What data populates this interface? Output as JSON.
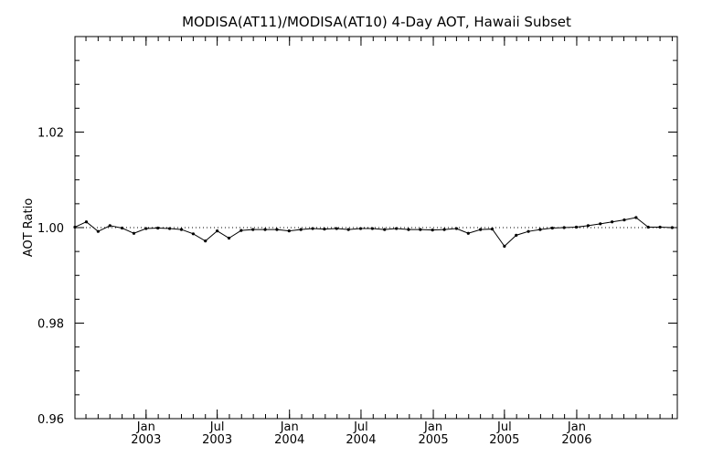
{
  "chart_data": {
    "type": "line",
    "title": "MODISA(AT11)/MODISA(AT10) 4-Day AOT, Hawaii Subset",
    "xlabel": "",
    "ylabel": "AOT Ratio",
    "ylim": [
      0.96,
      1.04
    ],
    "xlim": [
      "2002-07-04",
      "2006-09-14"
    ],
    "y_ticks": [
      {
        "value": 0.96,
        "label": "0.96"
      },
      {
        "value": 0.98,
        "label": "0.98"
      },
      {
        "value": 1.0,
        "label": "1.00"
      },
      {
        "value": 1.02,
        "label": "1.02"
      }
    ],
    "x_ticks": [
      {
        "date": "2003-01-01",
        "month": "Jan",
        "year": "2003"
      },
      {
        "date": "2003-07-01",
        "month": "Jul",
        "year": "2003"
      },
      {
        "date": "2004-01-01",
        "month": "Jan",
        "year": "2004"
      },
      {
        "date": "2004-07-01",
        "month": "Jul",
        "year": "2004"
      },
      {
        "date": "2005-01-01",
        "month": "Jan",
        "year": "2005"
      },
      {
        "date": "2005-07-01",
        "month": "Jul",
        "year": "2005"
      },
      {
        "date": "2006-01-01",
        "month": "Jan",
        "year": "2006"
      }
    ],
    "reference_line": {
      "y": 1.0,
      "style": "dotted"
    },
    "grid": false,
    "series": [
      {
        "x": [
          "2002-07-04",
          "2002-08-02",
          "2002-09-01",
          "2002-10-01",
          "2002-11-01",
          "2002-12-01",
          "2003-01-01",
          "2003-01-31",
          "2003-03-02",
          "2003-04-01",
          "2003-05-01",
          "2003-06-01",
          "2003-07-01",
          "2003-07-31",
          "2003-08-31",
          "2003-09-30",
          "2003-10-31",
          "2003-11-30",
          "2003-12-31",
          "2004-01-30",
          "2004-02-29",
          "2004-03-30",
          "2004-04-30",
          "2004-05-30",
          "2004-06-30",
          "2004-07-30",
          "2004-08-30",
          "2004-09-29",
          "2004-10-30",
          "2004-11-29",
          "2004-12-30",
          "2005-01-29",
          "2005-03-01",
          "2005-03-31",
          "2005-05-01",
          "2005-05-31",
          "2005-07-01",
          "2005-07-31",
          "2005-08-31",
          "2005-09-30",
          "2005-10-31",
          "2005-11-30",
          "2005-12-31",
          "2006-01-30",
          "2006-03-02",
          "2006-04-01",
          "2006-05-02",
          "2006-06-01",
          "2006-07-02",
          "2006-08-01",
          "2006-09-01"
        ],
        "y": [
          1.0001,
          1.0012,
          0.9992,
          1.0004,
          0.9999,
          0.9988,
          0.9998,
          0.9999,
          0.9998,
          0.9996,
          0.9987,
          0.9972,
          0.9993,
          0.9978,
          0.9994,
          0.9996,
          0.9996,
          0.9996,
          0.9993,
          0.9996,
          0.9998,
          0.9997,
          0.9998,
          0.9996,
          0.9998,
          0.9998,
          0.9996,
          0.9998,
          0.9996,
          0.9996,
          0.9995,
          0.9996,
          0.9998,
          0.9988,
          0.9996,
          0.9997,
          0.9961,
          0.9984,
          0.9992,
          0.9996,
          0.9999,
          1.0,
          1.0001,
          1.0004,
          1.0008,
          1.0012,
          1.0016,
          1.0021,
          1.0001,
          1.0001,
          1.0
        ]
      }
    ]
  }
}
